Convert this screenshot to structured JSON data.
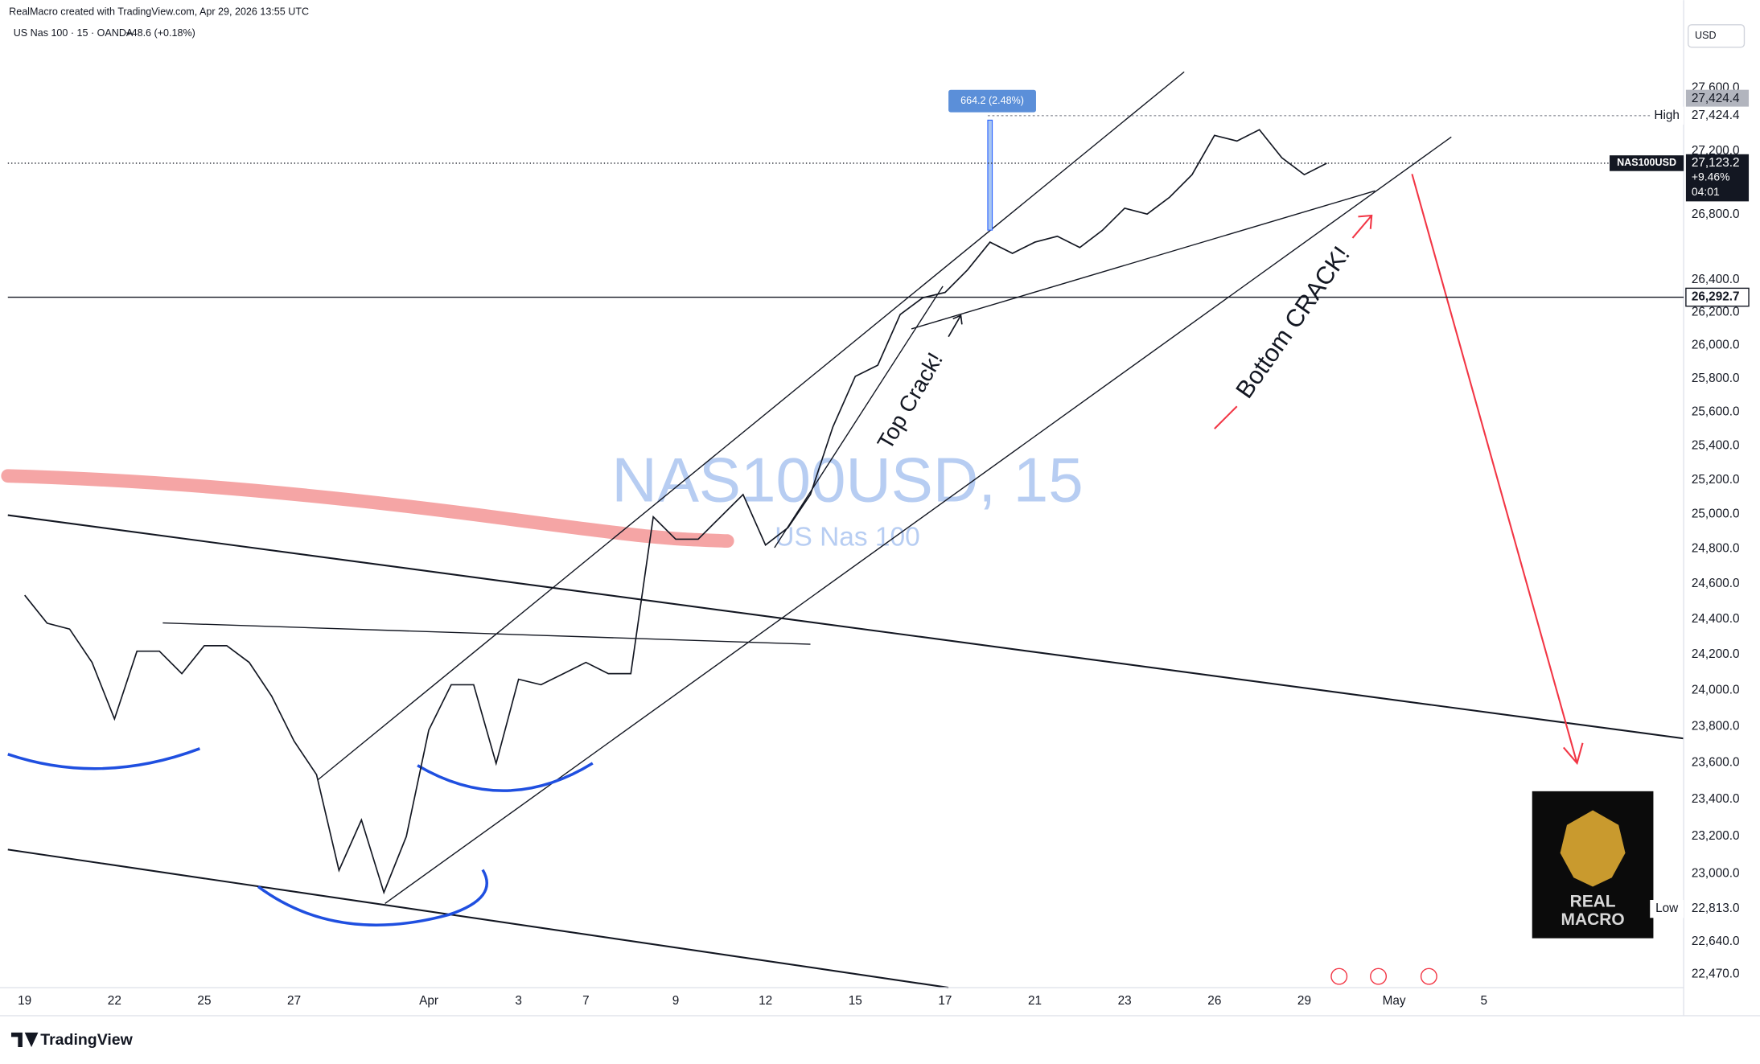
{
  "header": {
    "author_line": "RealMacro created with TradingView.com, Apr 29, 2026 13:55 UTC",
    "symbol_line": "US Nas 100 · 15 · OANDA",
    "change": "+48.6 (+0.18%)"
  },
  "chart_data": {
    "type": "line",
    "watermark": "NAS100USD, 15",
    "watermark_sub": "US Nas 100",
    "currency": "USD",
    "categories": [
      "19",
      null,
      null,
      null,
      "22",
      null,
      null,
      null,
      "25",
      null,
      null,
      null,
      "27",
      null,
      null,
      null,
      null,
      null,
      "Apr",
      null,
      null,
      null,
      "3",
      null,
      null,
      "7",
      null,
      null,
      null,
      "9",
      null,
      null,
      null,
      "12",
      null,
      null,
      null,
      "15",
      null,
      null,
      null,
      "17",
      null,
      null,
      null,
      "21",
      null,
      null,
      null,
      "23",
      null,
      null,
      null,
      "26",
      null,
      null,
      null,
      "29",
      null,
      null,
      null,
      "May",
      null,
      null,
      null,
      "5",
      null
    ],
    "series": [
      {
        "name": "NAS100USD",
        "color": "#131722",
        "values": [
          24536,
          24377,
          24344,
          24156,
          23841,
          24219,
          24219,
          24093,
          24250,
          24250,
          24156,
          23968,
          23719,
          23535,
          23018,
          23289,
          22900,
          23200,
          23780,
          24031,
          24031,
          23596,
          24062,
          24031,
          24093,
          24156,
          24093,
          24093,
          24986,
          24857,
          24857,
          24986,
          25116,
          24823,
          24923,
          25116,
          25513,
          25814,
          25881,
          26187,
          26289,
          26322,
          26460,
          26631,
          26562,
          26631,
          26667,
          26598,
          26703,
          26841,
          26805,
          26910,
          27051,
          27299,
          27263,
          27335,
          27158,
          27051,
          27123,
          null,
          null,
          null,
          null,
          null,
          null,
          null,
          null
        ]
      }
    ],
    "ylim": [
      22400,
      28060
    ],
    "log_scale": true,
    "yticks": [
      {
        "value": 27600,
        "label": "27,600.0"
      },
      {
        "value": 27200,
        "label": "27,200.0"
      },
      {
        "value": 26800,
        "label": "26,800.0"
      },
      {
        "value": 26400,
        "label": "26,400.0"
      },
      {
        "value": 26200,
        "label": "26,200.0"
      },
      {
        "value": 26000,
        "label": "26,000.0"
      },
      {
        "value": 25800,
        "label": "25,800.0"
      },
      {
        "value": 25600,
        "label": "25,600.0"
      },
      {
        "value": 25400,
        "label": "25,400.0"
      },
      {
        "value": 25200,
        "label": "25,200.0"
      },
      {
        "value": 25000,
        "label": "25,000.0"
      },
      {
        "value": 24800,
        "label": "24,800.0"
      },
      {
        "value": 24600,
        "label": "24,600.0"
      },
      {
        "value": 24400,
        "label": "24,400.0"
      },
      {
        "value": 24200,
        "label": "24,200.0"
      },
      {
        "value": 24000,
        "label": "24,000.0"
      },
      {
        "value": 23800,
        "label": "23,800.0"
      },
      {
        "value": 23600,
        "label": "23,600.0"
      },
      {
        "value": 23400,
        "label": "23,400.0"
      },
      {
        "value": 23200,
        "label": "23,200.0"
      },
      {
        "value": 23000,
        "label": "23,000.0"
      },
      {
        "value": 22640,
        "label": "22,640.0"
      },
      {
        "value": 22470,
        "label": "22,470.0"
      }
    ],
    "price_lines": [
      {
        "name": "High",
        "value": 27424.4,
        "label": "27,424.4"
      },
      {
        "value": 26292.7,
        "label": "26,292.7"
      },
      {
        "name": "Low",
        "value": 22813.0,
        "label": "22,813.0"
      }
    ],
    "last_price": {
      "value": 27123.2,
      "label": "27,123.2",
      "change": "+9.46%",
      "countdown": "04:01"
    },
    "annotations": [
      "664.2 (2.48%)",
      "Top Crack!",
      "Bottom CRACK!"
    ]
  },
  "logo": {
    "line1": "REAL",
    "line2": "MACRO"
  },
  "footer": {
    "brand": "TradingView"
  }
}
